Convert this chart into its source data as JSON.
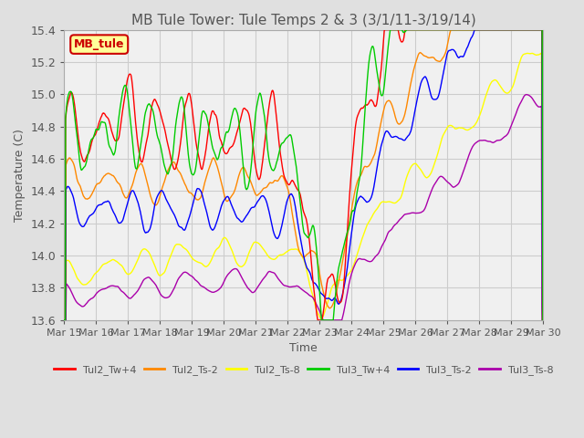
{
  "title": "MB Tule Tower: Tule Temps 2 & 3 (3/1/11-3/19/14)",
  "xlabel": "Time",
  "ylabel": "Temperature (C)",
  "ylim": [
    13.6,
    15.4
  ],
  "x_tick_labels": [
    "Mar 15",
    "Mar 16",
    "Mar 17",
    "Mar 18",
    "Mar 19",
    "Mar 20",
    "Mar 21",
    "Mar 22",
    "Mar 23",
    "Mar 24",
    "Mar 25",
    "Mar 26",
    "Mar 27",
    "Mar 28",
    "Mar 29",
    "Mar 30"
  ],
  "legend_label": "MB_tule",
  "line_labels": [
    "Tul2_Tw+4",
    "Tul2_Ts-2",
    "Tul2_Ts-8",
    "Tul3_Tw+4",
    "Tul3_Ts-2",
    "Tul3_Ts-8"
  ],
  "line_colors": [
    "#ff0000",
    "#ff8800",
    "#ffff00",
    "#00cc00",
    "#0000ff",
    "#aa00aa"
  ],
  "background_color": "#e0e0e0",
  "plot_bg_color": "#f0f0f0",
  "title_color": "#555555",
  "grid_color": "#cccccc",
  "yticks": [
    13.6,
    13.8,
    14.0,
    14.2,
    14.4,
    14.6,
    14.8,
    15.0,
    15.2,
    15.4
  ]
}
